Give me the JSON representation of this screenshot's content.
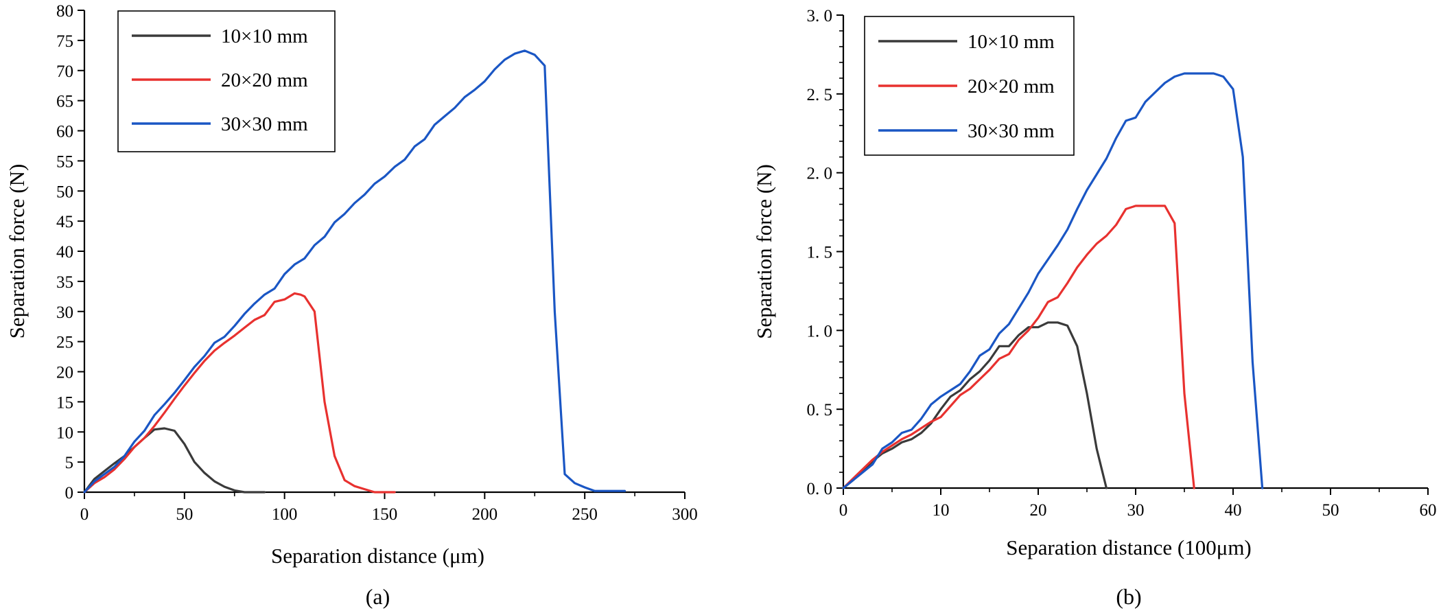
{
  "chart_data": [
    {
      "type": "line",
      "panel_label": "(a)",
      "xlabel": "Separation distance (μm)",
      "ylabel": "Separation force (N)",
      "xlim": [
        0,
        300
      ],
      "ylim": [
        0,
        80
      ],
      "x_ticks": [
        "0",
        "50",
        "100",
        "150",
        "200",
        "250",
        "300"
      ],
      "y_ticks": [
        "0",
        "5",
        "10",
        "15",
        "20",
        "25",
        "30",
        "35",
        "40",
        "45",
        "50",
        "55",
        "60",
        "65",
        "70",
        "75",
        "80"
      ],
      "legend_position": "top-left",
      "series": [
        {
          "name": "10×10 mm",
          "color": "#3a3a3a",
          "points": [
            [
              0,
              0
            ],
            [
              5,
              2.2
            ],
            [
              10,
              3.5
            ],
            [
              15,
              4.8
            ],
            [
              20,
              6.0
            ],
            [
              25,
              7.5
            ],
            [
              30,
              9.0
            ],
            [
              35,
              10.4
            ],
            [
              40,
              10.6
            ],
            [
              45,
              10.2
            ],
            [
              50,
              8.0
            ],
            [
              55,
              5.0
            ],
            [
              60,
              3.2
            ],
            [
              65,
              1.8
            ],
            [
              70,
              0.9
            ],
            [
              75,
              0.3
            ],
            [
              80,
              0.0
            ],
            [
              90,
              0.0
            ]
          ]
        },
        {
          "name": "20×20 mm",
          "color": "#e8312f",
          "points": [
            [
              0,
              0
            ],
            [
              5,
              1.5
            ],
            [
              10,
              2.5
            ],
            [
              15,
              3.8
            ],
            [
              20,
              5.5
            ],
            [
              25,
              7.5
            ],
            [
              30,
              9.0
            ],
            [
              35,
              11.0
            ],
            [
              40,
              13.2
            ],
            [
              45,
              15.5
            ],
            [
              50,
              17.7
            ],
            [
              55,
              19.8
            ],
            [
              60,
              21.8
            ],
            [
              65,
              23.5
            ],
            [
              70,
              24.8
            ],
            [
              75,
              26.0
            ],
            [
              80,
              27.3
            ],
            [
              85,
              28.6
            ],
            [
              90,
              29.4
            ],
            [
              95,
              31.6
            ],
            [
              100,
              32.0
            ],
            [
              105,
              33.0
            ],
            [
              108,
              32.8
            ],
            [
              110,
              32.5
            ],
            [
              115,
              30.0
            ],
            [
              120,
              15.0
            ],
            [
              125,
              6.0
            ],
            [
              130,
              2.0
            ],
            [
              135,
              1.0
            ],
            [
              140,
              0.5
            ],
            [
              145,
              0.0
            ],
            [
              155,
              0.0
            ]
          ]
        },
        {
          "name": "30×30 mm",
          "color": "#1a56c4",
          "points": [
            [
              0,
              0
            ],
            [
              5,
              1.8
            ],
            [
              10,
              3.0
            ],
            [
              15,
              4.2
            ],
            [
              20,
              6.0
            ],
            [
              25,
              8.4
            ],
            [
              30,
              10.2
            ],
            [
              35,
              12.8
            ],
            [
              40,
              14.6
            ],
            [
              45,
              16.5
            ],
            [
              50,
              18.6
            ],
            [
              55,
              20.8
            ],
            [
              60,
              22.6
            ],
            [
              65,
              24.8
            ],
            [
              70,
              25.8
            ],
            [
              75,
              27.6
            ],
            [
              80,
              29.6
            ],
            [
              85,
              31.3
            ],
            [
              90,
              32.8
            ],
            [
              95,
              33.8
            ],
            [
              100,
              36.2
            ],
            [
              105,
              37.8
            ],
            [
              110,
              38.8
            ],
            [
              115,
              41.0
            ],
            [
              120,
              42.4
            ],
            [
              125,
              44.8
            ],
            [
              130,
              46.2
            ],
            [
              135,
              48.0
            ],
            [
              140,
              49.4
            ],
            [
              145,
              51.2
            ],
            [
              150,
              52.4
            ],
            [
              155,
              54.0
            ],
            [
              160,
              55.2
            ],
            [
              165,
              57.4
            ],
            [
              170,
              58.6
            ],
            [
              175,
              61.0
            ],
            [
              180,
              62.4
            ],
            [
              185,
              63.8
            ],
            [
              190,
              65.6
            ],
            [
              195,
              66.8
            ],
            [
              200,
              68.2
            ],
            [
              205,
              70.2
            ],
            [
              210,
              71.8
            ],
            [
              215,
              72.8
            ],
            [
              220,
              73.3
            ],
            [
              225,
              72.6
            ],
            [
              230,
              70.8
            ],
            [
              235,
              30.0
            ],
            [
              240,
              3.0
            ],
            [
              245,
              1.5
            ],
            [
              250,
              0.8
            ],
            [
              255,
              0.2
            ],
            [
              260,
              0.2
            ],
            [
              270,
              0.2
            ]
          ]
        }
      ]
    },
    {
      "type": "line",
      "panel_label": "(b)",
      "xlabel": "Separation distance (100μm)",
      "ylabel": "Separation force (N)",
      "xlim": [
        0,
        60
      ],
      "ylim": [
        0,
        3.0
      ],
      "x_ticks": [
        "0",
        "10",
        "20",
        "30",
        "40",
        "50",
        "60"
      ],
      "y_ticks": [
        "0. 0",
        "0. 5",
        "1. 0",
        "1. 5",
        "2. 0",
        "2. 5",
        "3. 0"
      ],
      "legend_position": "top-left",
      "series": [
        {
          "name": "10×10 mm",
          "color": "#3a3a3a",
          "points": [
            [
              0,
              0
            ],
            [
              1,
              0.05
            ],
            [
              2,
              0.11
            ],
            [
              3,
              0.17
            ],
            [
              4,
              0.22
            ],
            [
              5,
              0.25
            ],
            [
              6,
              0.29
            ],
            [
              7,
              0.31
            ],
            [
              8,
              0.35
            ],
            [
              9,
              0.41
            ],
            [
              10,
              0.5
            ],
            [
              11,
              0.58
            ],
            [
              12,
              0.62
            ],
            [
              13,
              0.69
            ],
            [
              14,
              0.74
            ],
            [
              15,
              0.81
            ],
            [
              16,
              0.9
            ],
            [
              17,
              0.9
            ],
            [
              18,
              0.97
            ],
            [
              19,
              1.02
            ],
            [
              20,
              1.02
            ],
            [
              21,
              1.05
            ],
            [
              22,
              1.05
            ],
            [
              23,
              1.03
            ],
            [
              24,
              0.9
            ],
            [
              25,
              0.6
            ],
            [
              26,
              0.25
            ],
            [
              27,
              0.0
            ]
          ]
        },
        {
          "name": "20×20 mm",
          "color": "#e8312f",
          "points": [
            [
              0,
              0
            ],
            [
              1,
              0.06
            ],
            [
              2,
              0.12
            ],
            [
              3,
              0.18
            ],
            [
              4,
              0.23
            ],
            [
              5,
              0.27
            ],
            [
              6,
              0.31
            ],
            [
              7,
              0.34
            ],
            [
              8,
              0.38
            ],
            [
              9,
              0.42
            ],
            [
              10,
              0.45
            ],
            [
              11,
              0.52
            ],
            [
              12,
              0.59
            ],
            [
              13,
              0.63
            ],
            [
              14,
              0.69
            ],
            [
              15,
              0.75
            ],
            [
              16,
              0.82
            ],
            [
              17,
              0.85
            ],
            [
              18,
              0.94
            ],
            [
              19,
              1.0
            ],
            [
              20,
              1.08
            ],
            [
              21,
              1.18
            ],
            [
              22,
              1.21
            ],
            [
              23,
              1.3
            ],
            [
              24,
              1.4
            ],
            [
              25,
              1.48
            ],
            [
              26,
              1.55
            ],
            [
              27,
              1.6
            ],
            [
              28,
              1.67
            ],
            [
              29,
              1.77
            ],
            [
              30,
              1.79
            ],
            [
              31,
              1.79
            ],
            [
              32,
              1.79
            ],
            [
              33,
              1.79
            ],
            [
              34,
              1.68
            ],
            [
              35,
              0.6
            ],
            [
              36,
              0.0
            ]
          ]
        },
        {
          "name": "30×30 mm",
          "color": "#1a56c4",
          "points": [
            [
              0,
              0
            ],
            [
              1,
              0.05
            ],
            [
              2,
              0.1
            ],
            [
              3,
              0.15
            ],
            [
              4,
              0.25
            ],
            [
              5,
              0.29
            ],
            [
              6,
              0.35
            ],
            [
              7,
              0.37
            ],
            [
              8,
              0.44
            ],
            [
              9,
              0.53
            ],
            [
              10,
              0.58
            ],
            [
              11,
              0.62
            ],
            [
              12,
              0.66
            ],
            [
              13,
              0.74
            ],
            [
              14,
              0.84
            ],
            [
              15,
              0.88
            ],
            [
              16,
              0.98
            ],
            [
              17,
              1.04
            ],
            [
              18,
              1.14
            ],
            [
              19,
              1.24
            ],
            [
              20,
              1.36
            ],
            [
              21,
              1.45
            ],
            [
              22,
              1.54
            ],
            [
              23,
              1.64
            ],
            [
              24,
              1.77
            ],
            [
              25,
              1.89
            ],
            [
              26,
              1.99
            ],
            [
              27,
              2.09
            ],
            [
              28,
              2.22
            ],
            [
              29,
              2.33
            ],
            [
              30,
              2.35
            ],
            [
              31,
              2.45
            ],
            [
              32,
              2.51
            ],
            [
              33,
              2.57
            ],
            [
              34,
              2.61
            ],
            [
              35,
              2.63
            ],
            [
              36,
              2.63
            ],
            [
              37,
              2.63
            ],
            [
              38,
              2.63
            ],
            [
              39,
              2.61
            ],
            [
              40,
              2.53
            ],
            [
              41,
              2.1
            ],
            [
              42,
              0.8
            ],
            [
              43,
              0.0
            ]
          ]
        }
      ]
    }
  ]
}
